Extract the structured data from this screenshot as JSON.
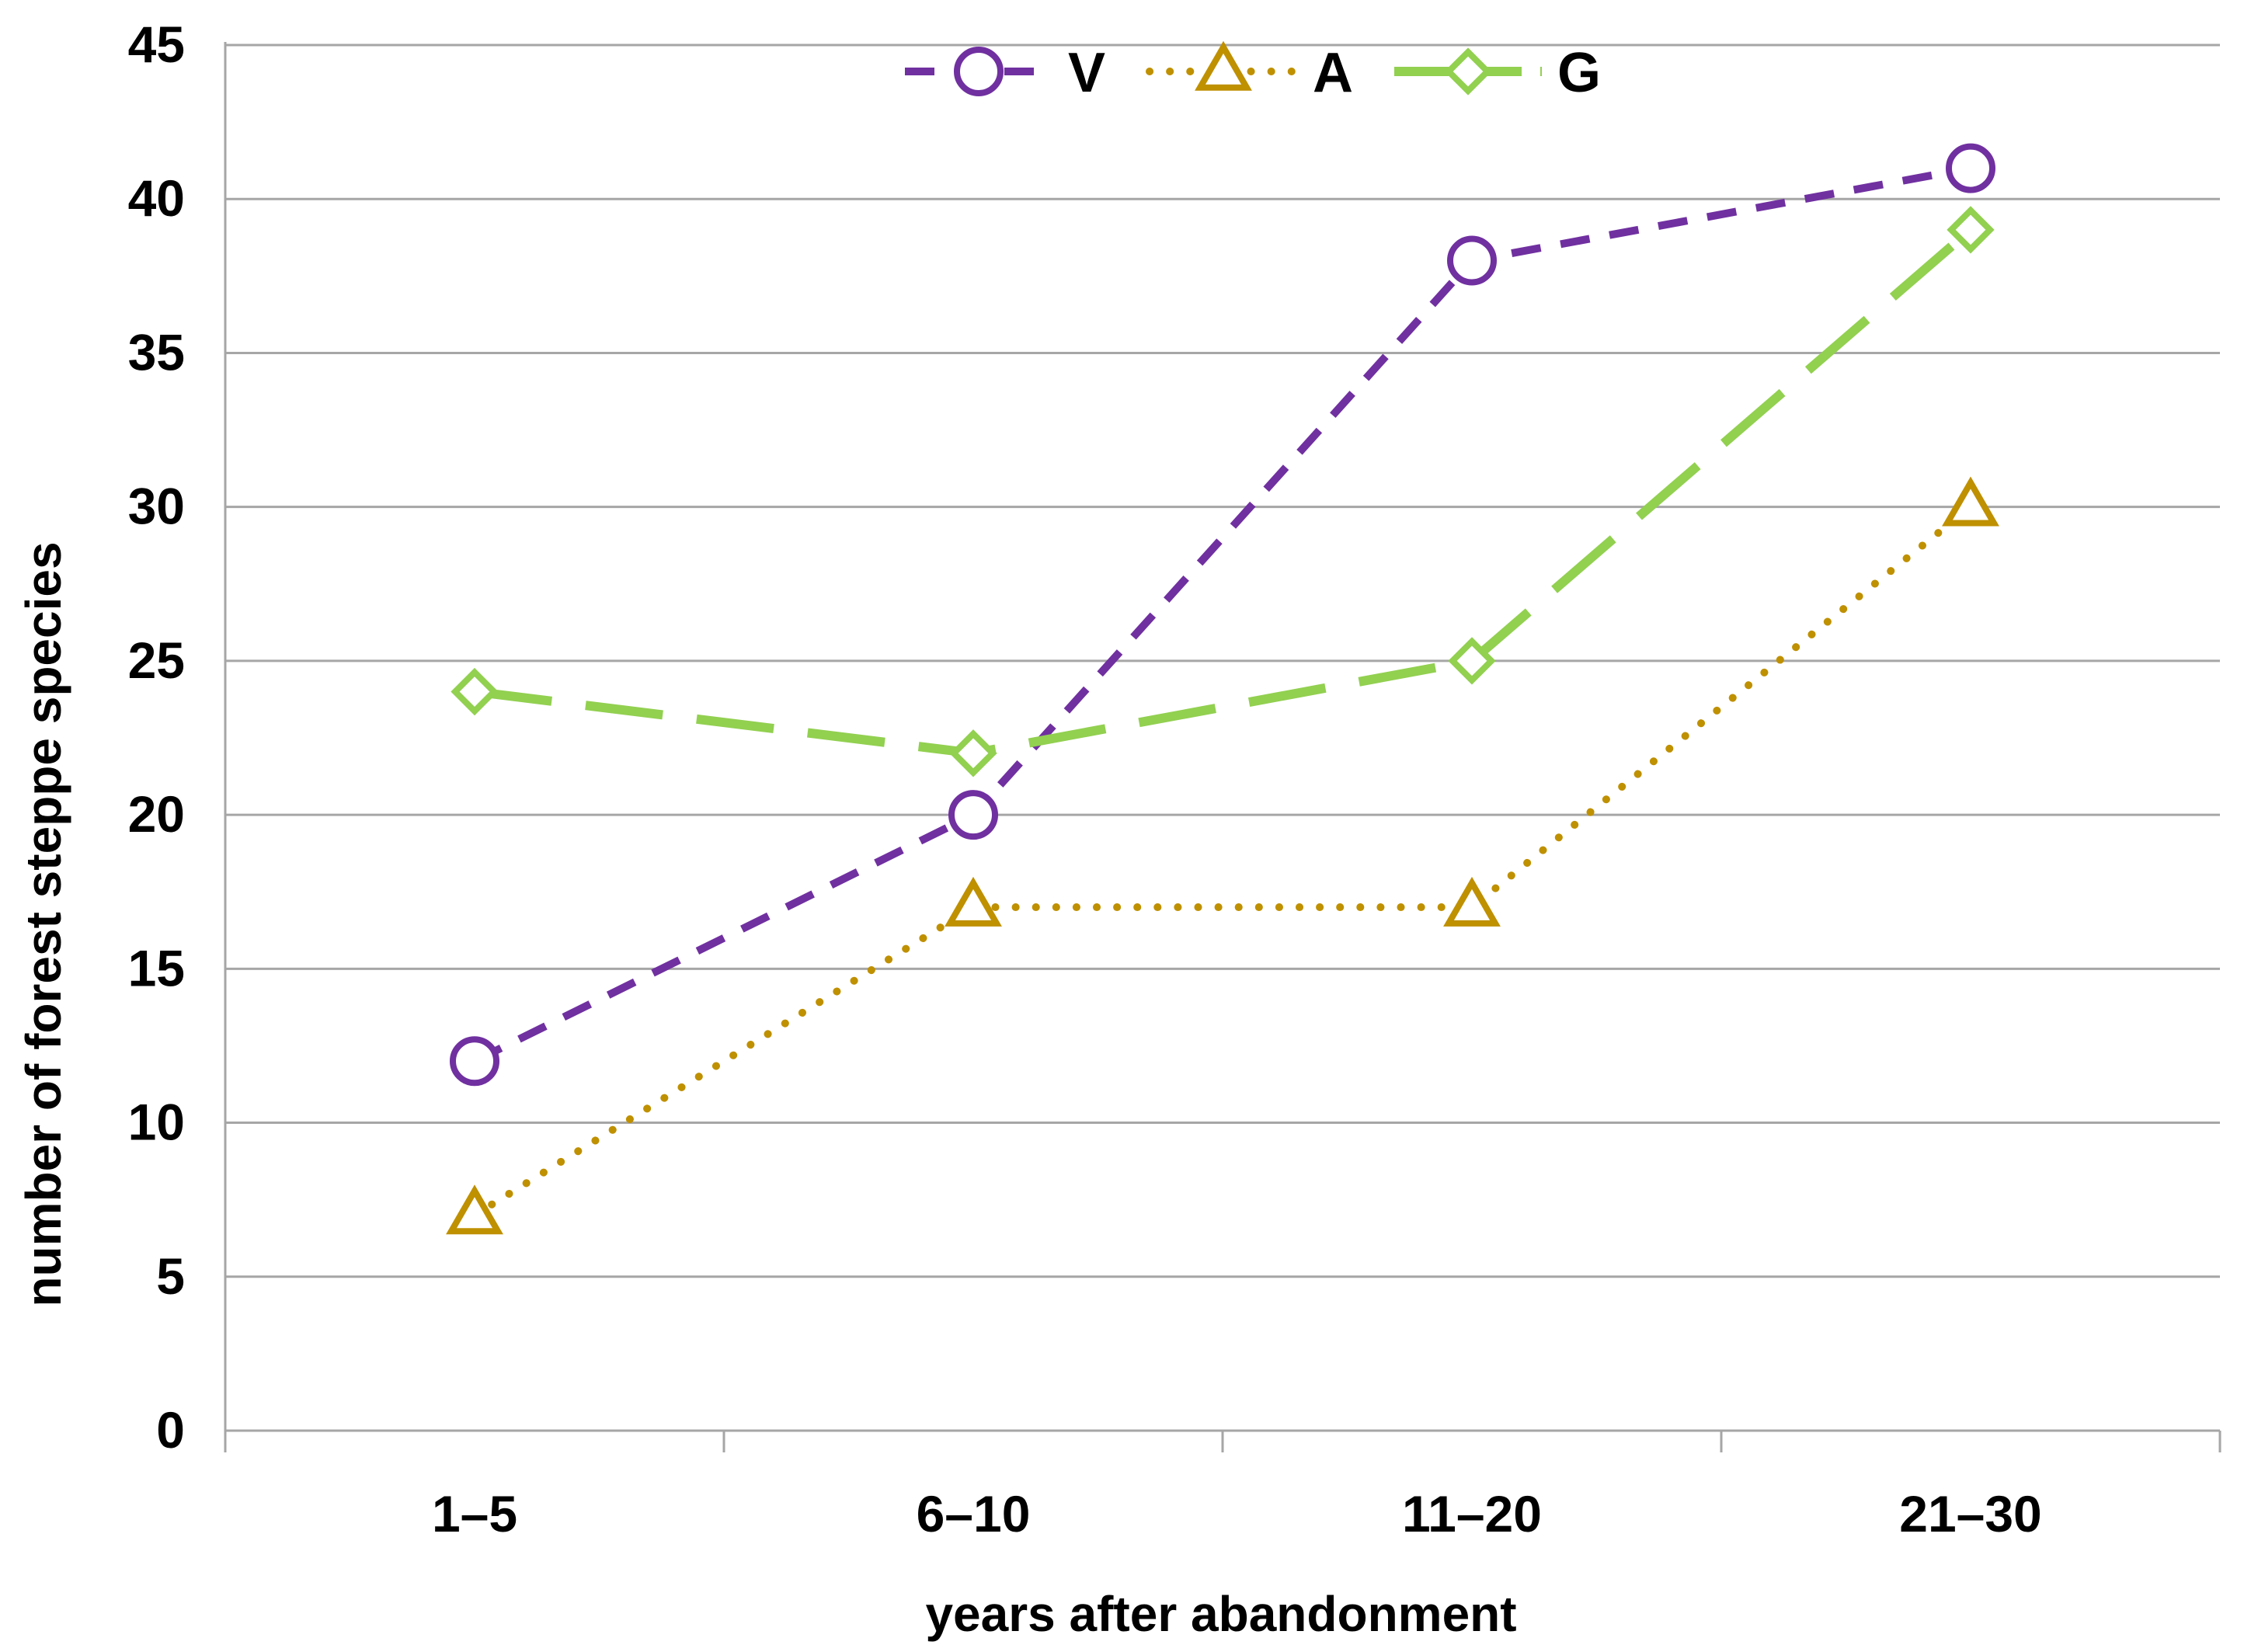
{
  "chart_data": {
    "type": "line",
    "title": "",
    "xlabel": "years after abandonment",
    "ylabel": "number of forest steppe species",
    "categories": [
      "1–5",
      "6–10",
      "11–20",
      "21–30"
    ],
    "ylim": [
      0,
      45
    ],
    "yticks": [
      0,
      5,
      10,
      15,
      20,
      25,
      30,
      35,
      40,
      45
    ],
    "grid": "horizontal",
    "legend_position": "top-center",
    "series": [
      {
        "name": "V",
        "values": [
          12,
          20,
          38,
          41
        ],
        "color": "#7030A0",
        "line_style": "dashed",
        "marker": "circle"
      },
      {
        "name": "A",
        "values": [
          7,
          17,
          17,
          30
        ],
        "color": "#BF9000",
        "line_style": "dotted",
        "marker": "triangle"
      },
      {
        "name": "G",
        "values": [
          24,
          22,
          25,
          39
        ],
        "color": "#92D050",
        "line_style": "long-dashed",
        "marker": "diamond"
      }
    ]
  }
}
